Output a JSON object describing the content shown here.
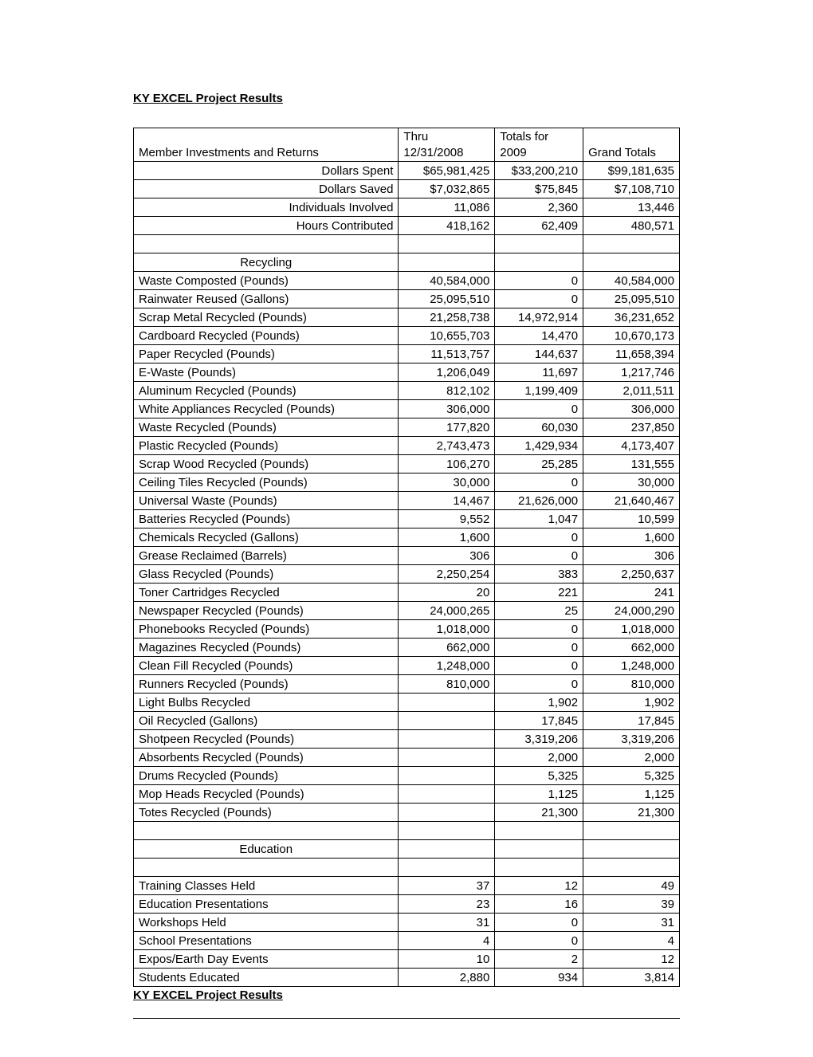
{
  "title": "KY EXCEL Project Results",
  "footer": "KY EXCEL Project Results",
  "columns": [
    "label",
    "c1",
    "c2",
    "c3"
  ],
  "header_row": {
    "label": "Member Investments and Returns",
    "c1": "Thru 12/31/2008",
    "c2": "Totals for 2009",
    "c3": "Grand Totals"
  },
  "rows": [
    {
      "label": "Dollars Spent",
      "align": "right",
      "c1": "$65,981,425",
      "c2": "$33,200,210",
      "c3": "$99,181,635"
    },
    {
      "label": "Dollars Saved",
      "align": "right",
      "c1": "$7,032,865",
      "c2": "$75,845",
      "c3": "$7,108,710"
    },
    {
      "label": "Individuals Involved",
      "align": "right",
      "c1": "11,086",
      "c2": "2,360",
      "c3": "13,446"
    },
    {
      "label": "Hours Contributed",
      "align": "right",
      "c1": "418,162",
      "c2": "62,409",
      "c3": "480,571"
    },
    {
      "blank": true
    },
    {
      "label": "Recycling",
      "align": "center",
      "section": true
    },
    {
      "label": "Waste Composted (Pounds)",
      "align": "left",
      "c1": "40,584,000",
      "c2": "0",
      "c3": "40,584,000"
    },
    {
      "label": "Rainwater Reused (Gallons)",
      "align": "left",
      "c1": "25,095,510",
      "c2": "0",
      "c3": "25,095,510"
    },
    {
      "label": "Scrap Metal Recycled (Pounds)",
      "align": "left",
      "c1": "21,258,738",
      "c2": "14,972,914",
      "c3": "36,231,652"
    },
    {
      "label": "Cardboard Recycled (Pounds)",
      "align": "left",
      "c1": "10,655,703",
      "c2": "14,470",
      "c3": "10,670,173"
    },
    {
      "label": "Paper Recycled (Pounds)",
      "align": "left",
      "c1": "11,513,757",
      "c2": "144,637",
      "c3": "11,658,394"
    },
    {
      "label": "E-Waste (Pounds)",
      "align": "left",
      "c1": "1,206,049",
      "c2": "11,697",
      "c3": "1,217,746"
    },
    {
      "label": "Aluminum Recycled (Pounds)",
      "align": "left",
      "c1": "812,102",
      "c2": "1,199,409",
      "c3": "2,011,511"
    },
    {
      "label": "White Appliances Recycled (Pounds)",
      "align": "left",
      "c1": "306,000",
      "c2": "0",
      "c3": "306,000"
    },
    {
      "label": "Waste Recycled (Pounds)",
      "align": "left",
      "c1": "177,820",
      "c2": "60,030",
      "c3": "237,850"
    },
    {
      "label": "Plastic Recycled (Pounds)",
      "align": "left",
      "c1": "2,743,473",
      "c2": "1,429,934",
      "c3": "4,173,407"
    },
    {
      "label": "Scrap Wood Recycled (Pounds)",
      "align": "left",
      "c1": "106,270",
      "c2": "25,285",
      "c3": "131,555"
    },
    {
      "label": "Ceiling Tiles Recycled (Pounds)",
      "align": "left",
      "c1": "30,000",
      "c2": "0",
      "c3": "30,000"
    },
    {
      "label": "Universal Waste (Pounds)",
      "align": "left",
      "c1": "14,467",
      "c2": "21,626,000",
      "c3": "21,640,467"
    },
    {
      "label": "Batteries Recycled (Pounds)",
      "align": "left",
      "c1": "9,552",
      "c2": "1,047",
      "c3": "10,599"
    },
    {
      "label": "Chemicals Recycled (Gallons)",
      "align": "left",
      "c1": "1,600",
      "c2": "0",
      "c3": "1,600"
    },
    {
      "label": "Grease Reclaimed (Barrels)",
      "align": "left",
      "c1": "306",
      "c2": "0",
      "c3": "306"
    },
    {
      "label": "Glass Recycled (Pounds)",
      "align": "left",
      "c1": "2,250,254",
      "c2": "383",
      "c3": "2,250,637"
    },
    {
      "label": "Toner Cartridges Recycled",
      "align": "left",
      "c1": "20",
      "c2": "221",
      "c3": "241"
    },
    {
      "label": "Newspaper Recycled (Pounds)",
      "align": "left",
      "c1": "24,000,265",
      "c2": "25",
      "c3": "24,000,290"
    },
    {
      "label": "Phonebooks Recycled (Pounds)",
      "align": "left",
      "c1": "1,018,000",
      "c2": "0",
      "c3": "1,018,000"
    },
    {
      "label": "Magazines Recycled (Pounds)",
      "align": "left",
      "c1": "662,000",
      "c2": "0",
      "c3": "662,000"
    },
    {
      "label": "Clean Fill Recycled (Pounds)",
      "align": "left",
      "c1": "1,248,000",
      "c2": "0",
      "c3": "1,248,000"
    },
    {
      "label": "Runners Recycled (Pounds)",
      "align": "left",
      "c1": "810,000",
      "c2": "0",
      "c3": "810,000"
    },
    {
      "label": "Light Bulbs Recycled",
      "align": "left",
      "c1": "",
      "c2": "1,902",
      "c3": "1,902"
    },
    {
      "label": "Oil Recycled (Gallons)",
      "align": "left",
      "c1": "",
      "c2": "17,845",
      "c3": "17,845"
    },
    {
      "label": "Shotpeen Recycled (Pounds)",
      "align": "left",
      "c1": "",
      "c2": "3,319,206",
      "c3": "3,319,206"
    },
    {
      "label": "Absorbents Recycled (Pounds)",
      "align": "left",
      "c1": "",
      "c2": "2,000",
      "c3": "2,000"
    },
    {
      "label": "Drums Recycled (Pounds)",
      "align": "left",
      "c1": "",
      "c2": "5,325",
      "c3": "5,325"
    },
    {
      "label": "Mop Heads Recycled (Pounds)",
      "align": "left",
      "c1": "",
      "c2": "1,125",
      "c3": "1,125"
    },
    {
      "label": "Totes Recycled (Pounds)",
      "align": "left",
      "c1": "",
      "c2": "21,300",
      "c3": "21,300"
    },
    {
      "blank": true
    },
    {
      "label": "Education",
      "align": "center",
      "section": true
    },
    {
      "blank": true
    },
    {
      "label": "Training Classes Held",
      "align": "left",
      "c1": "37",
      "c2": "12",
      "c3": "49"
    },
    {
      "label": "Education Presentations",
      "align": "left",
      "c1": "23",
      "c2": "16",
      "c3": "39"
    },
    {
      "label": "Workshops Held",
      "align": "left",
      "c1": "31",
      "c2": "0",
      "c3": "31"
    },
    {
      "label": "School Presentations",
      "align": "left",
      "c1": "4",
      "c2": "0",
      "c3": "4"
    },
    {
      "label": "Expos/Earth Day Events",
      "align": "left",
      "c1": "10",
      "c2": "2",
      "c3": "12"
    },
    {
      "label": "Students Educated",
      "align": "left",
      "c1": "2,880",
      "c2": "934",
      "c3": "3,814"
    }
  ]
}
